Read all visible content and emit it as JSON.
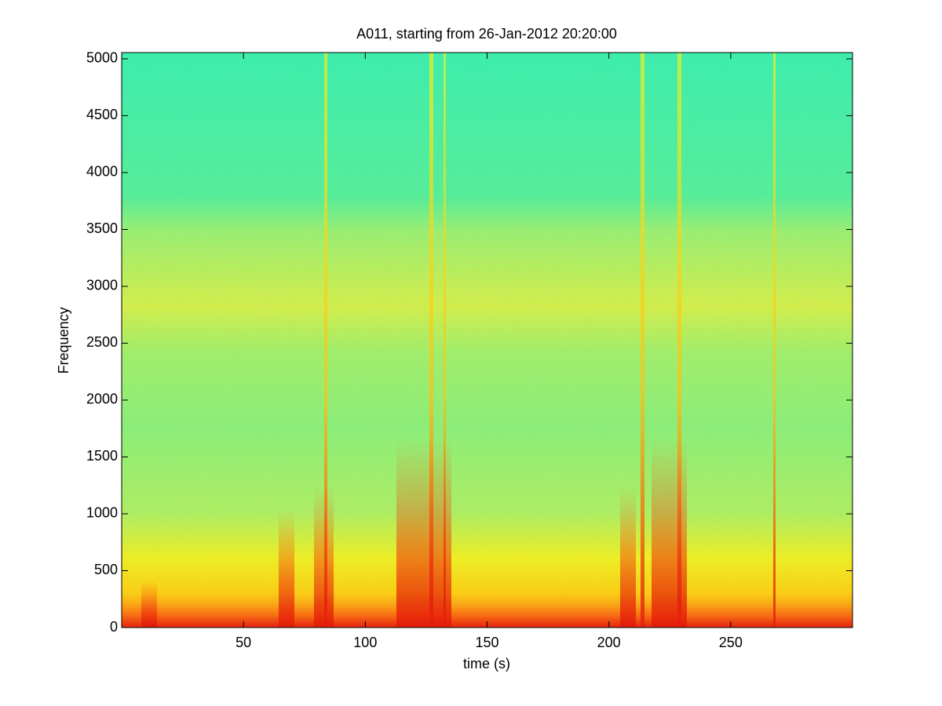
{
  "chart_data": {
    "type": "spectrogram",
    "title": "A011, starting from 26-Jan-2012 20:20:00",
    "xlabel": "time (s)",
    "ylabel": "Frequency",
    "xlim": [
      0,
      300
    ],
    "xticks": [
      50,
      100,
      150,
      200,
      250
    ],
    "ylim": [
      0,
      5055
    ],
    "yticks": [
      0,
      500,
      1000,
      1500,
      2000,
      2500,
      3000,
      3500,
      4000,
      4500,
      5000
    ],
    "colormap": "jet"
  }
}
